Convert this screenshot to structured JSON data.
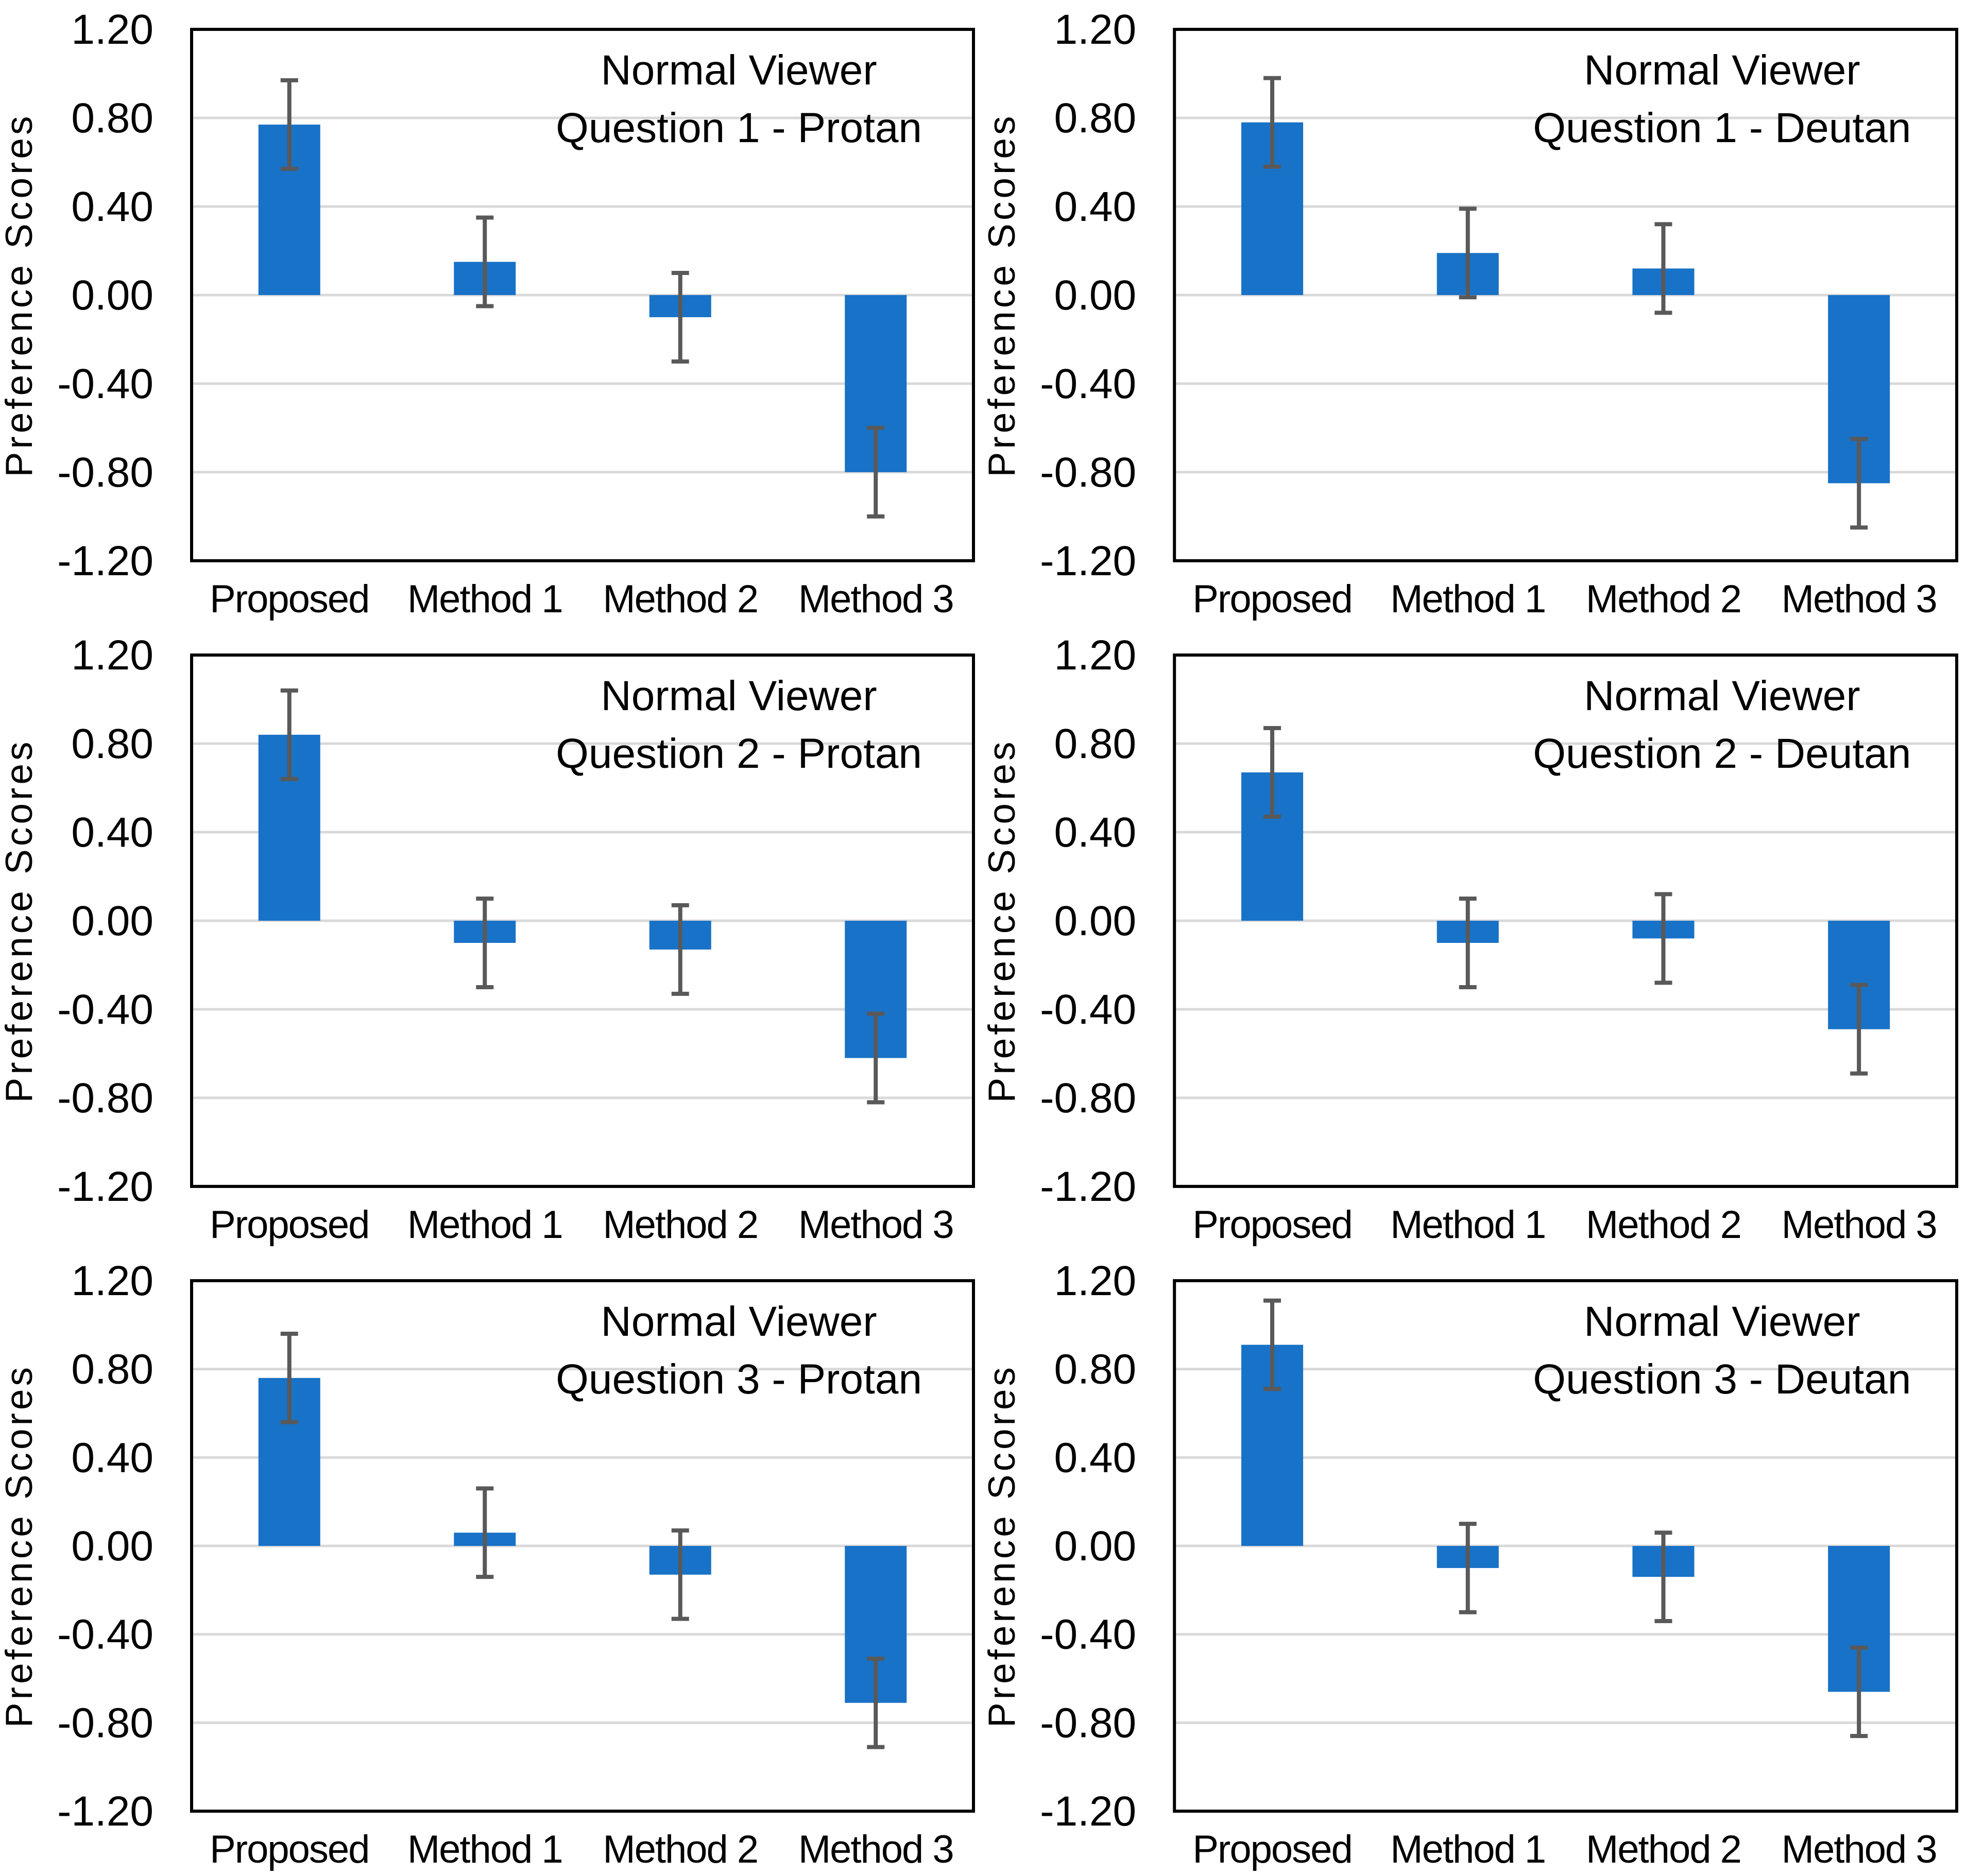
{
  "figure": {
    "background": "#FFFFFF",
    "grid": {
      "rows": 3,
      "cols": 2
    }
  },
  "style": {
    "bar_color": "#1872C7",
    "error_bar_color": "#595959",
    "gridline_color": "#D9D9D9",
    "plot_border_color": "#000000",
    "text_color": "#000000"
  },
  "chart_data": [
    {
      "id": "question-1-protan",
      "type": "bar",
      "title_lines": [
        "Normal Viewer",
        "Question 1 - Protan"
      ],
      "ylabel": "Preference Scores",
      "xlabel": "",
      "categories": [
        "Proposed",
        "Method 1",
        "Method 2",
        "Method 3"
      ],
      "values": [
        0.77,
        0.15,
        -0.1,
        -0.8
      ],
      "error_bars": [
        0.2,
        0.2,
        0.2,
        0.2
      ],
      "ylim": [
        -1.2,
        1.2
      ],
      "yticks": [
        1.2,
        0.8,
        0.4,
        0.0,
        -0.4,
        -0.8,
        -1.2
      ],
      "ytick_labels": [
        "1.20",
        "0.80",
        "0.40",
        "0.00",
        "-0.40",
        "-0.80",
        "-1.20"
      ],
      "grid": true,
      "legend": null
    },
    {
      "id": "question-1-deutan",
      "type": "bar",
      "title_lines": [
        "Normal Viewer",
        "Question 1 - Deutan"
      ],
      "ylabel": "Preference Scores",
      "xlabel": "",
      "categories": [
        "Proposed",
        "Method 1",
        "Method 2",
        "Method 3"
      ],
      "values": [
        0.78,
        0.19,
        0.12,
        -0.85
      ],
      "error_bars": [
        0.2,
        0.2,
        0.2,
        0.2
      ],
      "ylim": [
        -1.2,
        1.2
      ],
      "yticks": [
        1.2,
        0.8,
        0.4,
        0.0,
        -0.4,
        -0.8,
        -1.2
      ],
      "ytick_labels": [
        "1.20",
        "0.80",
        "0.40",
        "0.00",
        "-0.40",
        "-0.80",
        "-1.20"
      ],
      "grid": true,
      "legend": null
    },
    {
      "id": "question-2-protan",
      "type": "bar",
      "title_lines": [
        "Normal Viewer",
        "Question 2 - Protan"
      ],
      "ylabel": "Preference Scores",
      "xlabel": "",
      "categories": [
        "Proposed",
        "Method 1",
        "Method 2",
        "Method 3"
      ],
      "values": [
        0.84,
        -0.1,
        -0.13,
        -0.62
      ],
      "error_bars": [
        0.2,
        0.2,
        0.2,
        0.2
      ],
      "ylim": [
        -1.2,
        1.2
      ],
      "yticks": [
        1.2,
        0.8,
        0.4,
        0.0,
        -0.4,
        -0.8,
        -1.2
      ],
      "ytick_labels": [
        "1.20",
        "0.80",
        "0.40",
        "0.00",
        "-0.40",
        "-0.80",
        "-1.20"
      ],
      "grid": true,
      "legend": null
    },
    {
      "id": "question-2-deutan",
      "type": "bar",
      "title_lines": [
        "Normal Viewer",
        "Question 2 - Deutan"
      ],
      "ylabel": "Preference Scores",
      "xlabel": "",
      "categories": [
        "Proposed",
        "Method 1",
        "Method 2",
        "Method 3"
      ],
      "values": [
        0.67,
        -0.1,
        -0.08,
        -0.49
      ],
      "error_bars": [
        0.2,
        0.2,
        0.2,
        0.2
      ],
      "ylim": [
        -1.2,
        1.2
      ],
      "yticks": [
        1.2,
        0.8,
        0.4,
        0.0,
        -0.4,
        -0.8,
        -1.2
      ],
      "ytick_labels": [
        "1.20",
        "0.80",
        "0.40",
        "0.00",
        "-0.40",
        "-0.80",
        "-1.20"
      ],
      "grid": true,
      "legend": null
    },
    {
      "id": "question-3-protan",
      "type": "bar",
      "title_lines": [
        "Normal Viewer",
        "Question 3 - Protan"
      ],
      "ylabel": "Preference Scores",
      "xlabel": "",
      "categories": [
        "Proposed",
        "Method 1",
        "Method 2",
        "Method 3"
      ],
      "values": [
        0.76,
        0.06,
        -0.13,
        -0.71
      ],
      "error_bars": [
        0.2,
        0.2,
        0.2,
        0.2
      ],
      "ylim": [
        -1.2,
        1.2
      ],
      "yticks": [
        1.2,
        0.8,
        0.4,
        0.0,
        -0.4,
        -0.8,
        -1.2
      ],
      "ytick_labels": [
        "1.20",
        "0.80",
        "0.40",
        "0.00",
        "-0.40",
        "-0.80",
        "-1.20"
      ],
      "grid": true,
      "legend": null
    },
    {
      "id": "question-3-deutan",
      "type": "bar",
      "title_lines": [
        "Normal Viewer",
        "Question 3 - Deutan"
      ],
      "ylabel": "Preference Scores",
      "xlabel": "",
      "categories": [
        "Proposed",
        "Method 1",
        "Method 2",
        "Method 3"
      ],
      "values": [
        0.91,
        -0.1,
        -0.14,
        -0.66
      ],
      "error_bars": [
        0.2,
        0.2,
        0.2,
        0.2
      ],
      "ylim": [
        -1.2,
        1.2
      ],
      "yticks": [
        1.2,
        0.8,
        0.4,
        0.0,
        -0.4,
        -0.8,
        -1.2
      ],
      "ytick_labels": [
        "1.20",
        "0.80",
        "0.40",
        "0.00",
        "-0.40",
        "-0.80",
        "-1.20"
      ],
      "grid": true,
      "legend": null
    }
  ]
}
